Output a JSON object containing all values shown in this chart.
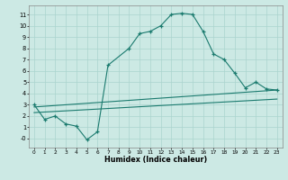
{
  "bg_color": "#cce9e4",
  "line_color": "#1a7a6e",
  "grid_color": "#aad4ce",
  "xlabel": "Humidex (Indice chaleur)",
  "xlim": [
    -0.5,
    23.5
  ],
  "ylim": [
    -0.8,
    11.8
  ],
  "xticks": [
    0,
    1,
    2,
    3,
    4,
    5,
    6,
    7,
    8,
    9,
    10,
    11,
    12,
    13,
    14,
    15,
    16,
    17,
    18,
    19,
    20,
    21,
    22,
    23
  ],
  "yticks": [
    0,
    1,
    2,
    3,
    4,
    5,
    6,
    7,
    8,
    9,
    10,
    11
  ],
  "ytick_labels": [
    "-0",
    "1",
    "2",
    "3",
    "4",
    "5",
    "6",
    "7",
    "8",
    "9",
    "10",
    "11"
  ],
  "line1_x": [
    0,
    1,
    2,
    3,
    4,
    5,
    6,
    7,
    9,
    10,
    11,
    12,
    13,
    14,
    15,
    16,
    17,
    18,
    19,
    20,
    21,
    22,
    23
  ],
  "line1_y": [
    3,
    1.7,
    2.0,
    1.3,
    1.1,
    -0.1,
    0.6,
    6.5,
    8.0,
    9.3,
    9.5,
    10.0,
    11.0,
    11.1,
    11.0,
    9.5,
    7.5,
    7.0,
    5.8,
    4.5,
    5.0,
    4.4,
    4.3
  ],
  "line2_x": [
    0,
    23
  ],
  "line2_y": [
    2.8,
    4.3
  ],
  "line3_x": [
    0,
    23
  ],
  "line3_y": [
    2.3,
    3.5
  ]
}
